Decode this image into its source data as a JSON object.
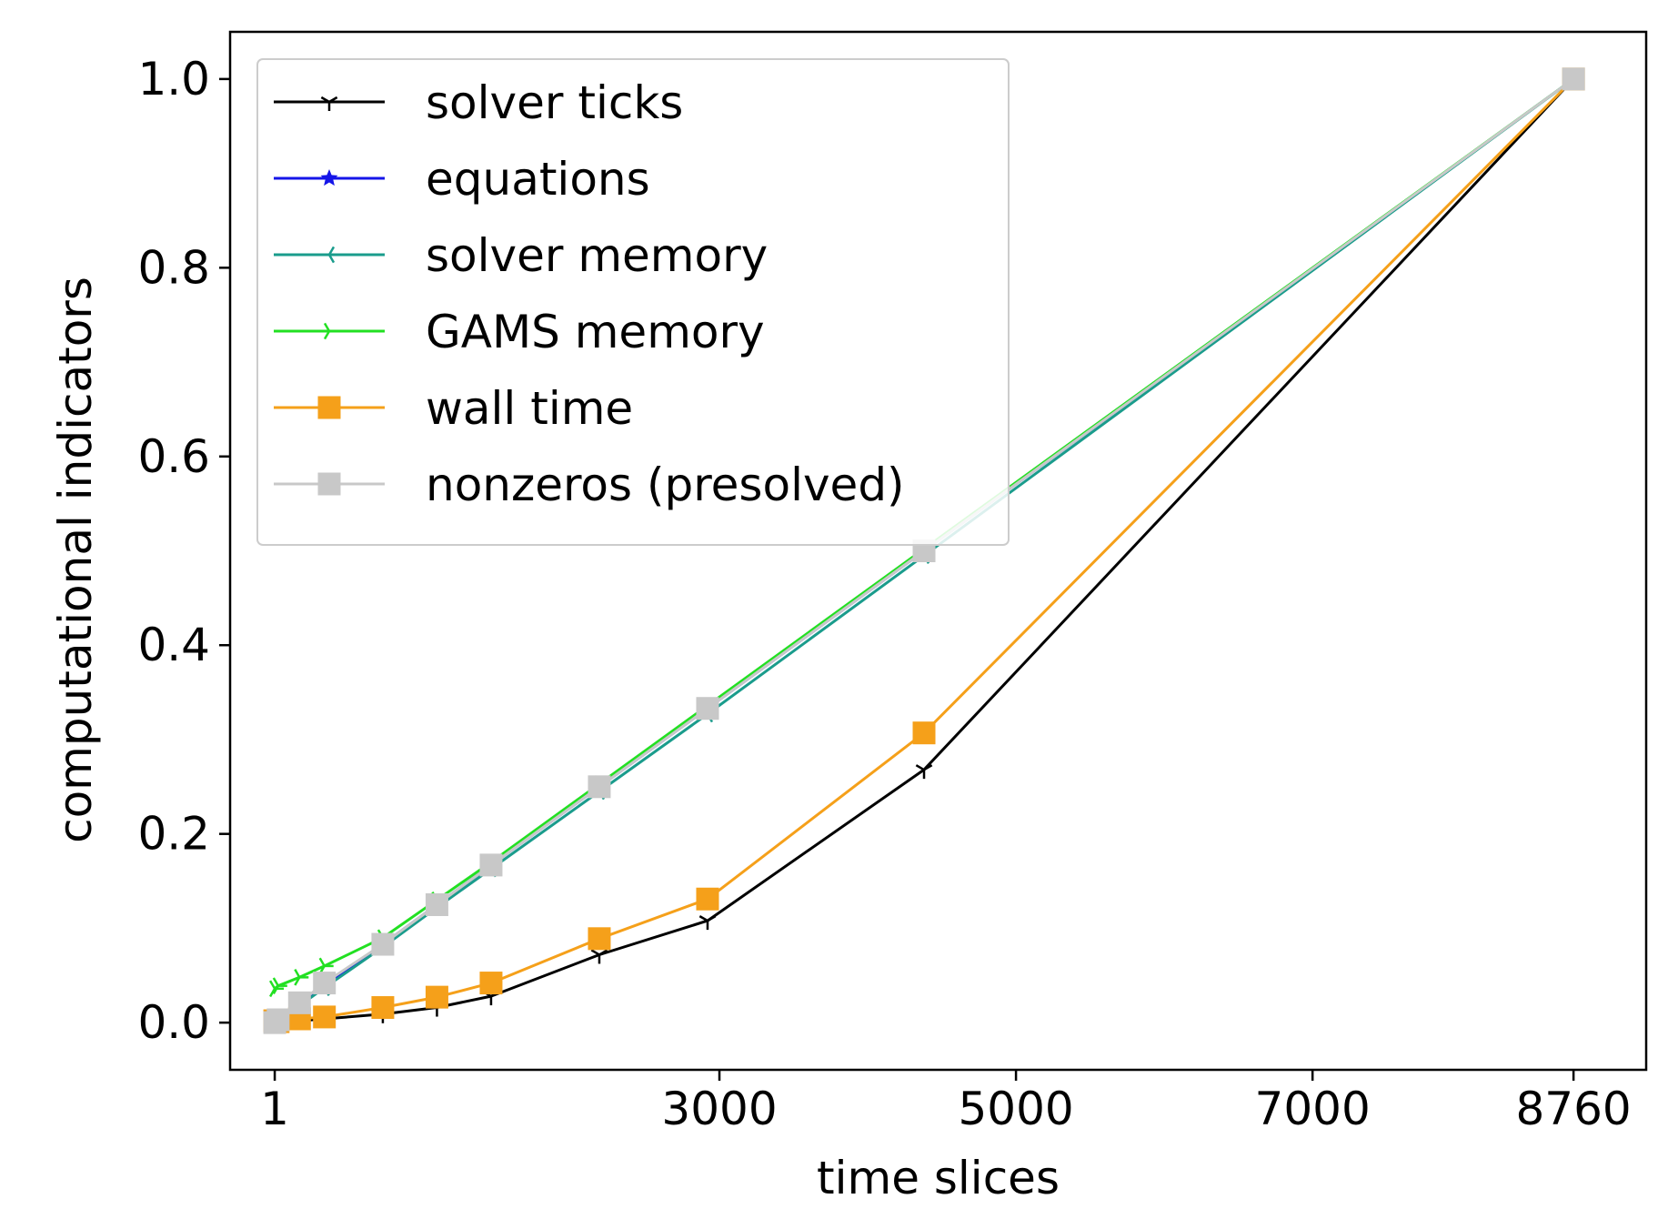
{
  "chart_data": {
    "type": "line",
    "title": "",
    "xlabel": "time slices",
    "ylabel": "computational indicators",
    "xlim": [
      -300,
      9250
    ],
    "ylim": [
      -0.05,
      1.05
    ],
    "xticks": [
      1,
      3000,
      5000,
      7000,
      8760
    ],
    "xtick_labels": [
      "1",
      "3000",
      "5000",
      "7000",
      "8760"
    ],
    "yticks": [
      0.0,
      0.2,
      0.4,
      0.6,
      0.8,
      1.0
    ],
    "ytick_labels": [
      "0.0",
      "0.2",
      "0.4",
      "0.6",
      "0.8",
      "1.0"
    ],
    "grid": false,
    "legend_position": "upper-left",
    "series": [
      {
        "name": "solver ticks",
        "color": "#000000",
        "marker": "tri-down",
        "line_width": 3,
        "x": [
          1,
          24,
          168,
          336,
          730,
          1095,
          1460,
          2190,
          2920,
          4380,
          8760
        ],
        "y": [
          0.0,
          0.0,
          0.002,
          0.004,
          0.009,
          0.016,
          0.028,
          0.072,
          0.108,
          0.268,
          1.0
        ]
      },
      {
        "name": "equations",
        "color": "#1515e8",
        "marker": "star",
        "line_width": 3,
        "x": [
          1,
          24,
          168,
          336,
          730,
          1095,
          1460,
          2190,
          2920,
          4380,
          8760
        ],
        "y": [
          0.0,
          0.003,
          0.019,
          0.038,
          0.083,
          0.125,
          0.167,
          0.25,
          0.333,
          0.5,
          1.0
        ]
      },
      {
        "name": "solver memory",
        "color": "#1a9c8c",
        "marker": "tri-left",
        "line_width": 3,
        "x": [
          1,
          24,
          168,
          336,
          730,
          1095,
          1460,
          2190,
          2920,
          4380,
          8760
        ],
        "y": [
          0.0,
          0.003,
          0.018,
          0.037,
          0.08,
          0.122,
          0.163,
          0.245,
          0.327,
          0.495,
          1.0
        ]
      },
      {
        "name": "GAMS memory",
        "color": "#22e022",
        "marker": "tri-right",
        "line_width": 3,
        "x": [
          1,
          24,
          168,
          336,
          730,
          1095,
          1460,
          2190,
          2920,
          4380,
          8760
        ],
        "y": [
          0.036,
          0.039,
          0.048,
          0.06,
          0.09,
          0.13,
          0.17,
          0.253,
          0.336,
          0.502,
          1.0
        ]
      },
      {
        "name": "wall time",
        "color": "#f5a01a",
        "marker": "square",
        "line_width": 3,
        "x": [
          1,
          24,
          168,
          336,
          730,
          1095,
          1460,
          2190,
          2920,
          4380,
          8760
        ],
        "y": [
          0.002,
          0.001,
          0.004,
          0.006,
          0.016,
          0.027,
          0.042,
          0.089,
          0.131,
          0.307,
          1.0
        ]
      },
      {
        "name": "nonzeros (presolved)",
        "color": "#c8c8c8",
        "marker": "square",
        "line_width": 3,
        "x": [
          1,
          24,
          168,
          336,
          730,
          1095,
          1460,
          2190,
          2920,
          4380,
          8760
        ],
        "y": [
          0.0,
          0.003,
          0.021,
          0.042,
          0.083,
          0.125,
          0.167,
          0.25,
          0.333,
          0.5,
          1.0
        ]
      }
    ]
  }
}
